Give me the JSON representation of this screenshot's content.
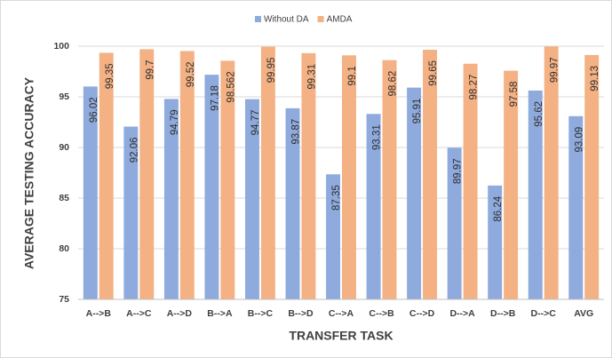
{
  "chart_data": {
    "type": "bar",
    "xlabel": "TRANSFER TASK",
    "ylabel": "AVERAGE TESTING ACCURACY",
    "categories": [
      "A-->B",
      "A-->C",
      "A-->D",
      "B-->A",
      "B-->C",
      "B-->D",
      "C-->A",
      "C-->B",
      "C-->D",
      "D-->A",
      "D-->B",
      "D-->C",
      "AVG"
    ],
    "series": [
      {
        "name": "Without DA",
        "color": "#8faadc",
        "values": [
          96.02,
          92.06,
          94.79,
          97.18,
          94.77,
          93.87,
          87.35,
          93.31,
          95.91,
          89.97,
          86.24,
          95.62,
          93.09
        ]
      },
      {
        "name": "AMDA",
        "color": "#f4b183",
        "values": [
          99.35,
          99.7,
          99.52,
          98.562,
          99.95,
          99.31,
          99.1,
          98.62,
          99.65,
          98.27,
          97.58,
          99.97,
          99.13
        ]
      }
    ],
    "ylim": [
      75,
      100
    ],
    "yticks": [
      75,
      80,
      85,
      90,
      95,
      100
    ],
    "grid": true,
    "legend": "top"
  }
}
